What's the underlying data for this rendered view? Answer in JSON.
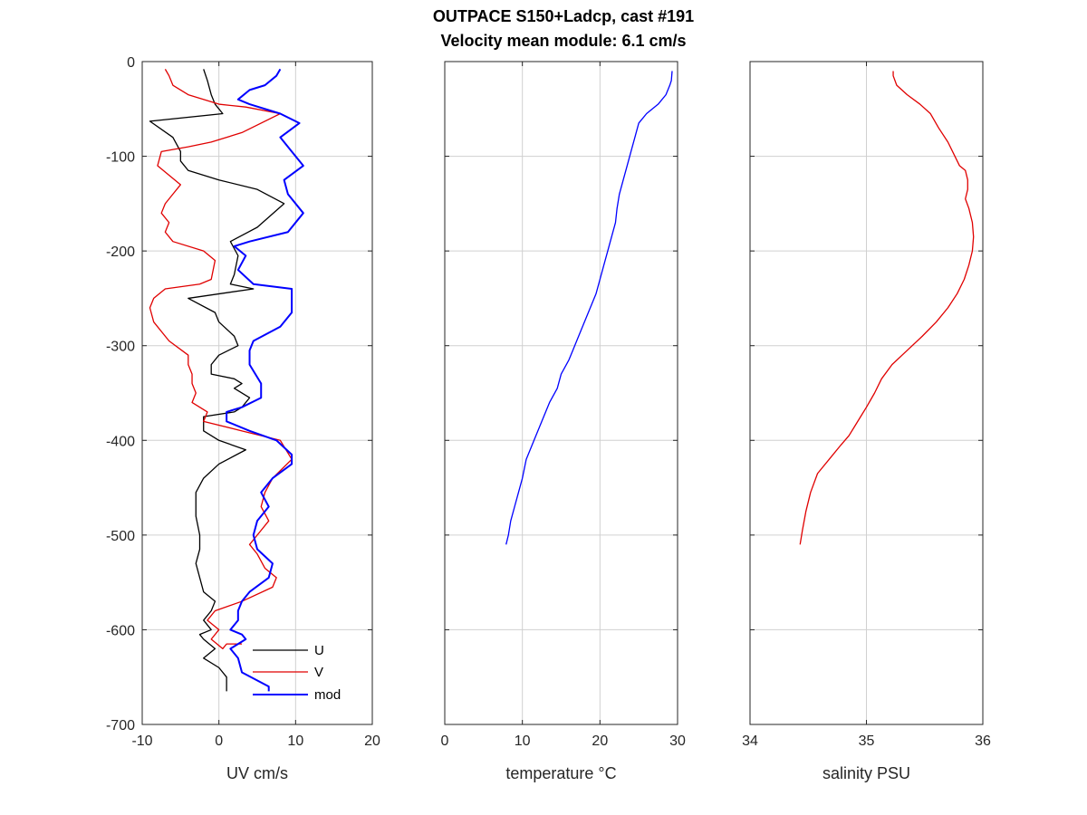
{
  "figure": {
    "title_line1": "OUTPACE S150+Ladcp, cast #191",
    "title_line2": "Velocity mean module:  6.1 cm/s",
    "colors": {
      "U": "#000000",
      "V": "#e00000",
      "mod": "#0000ff",
      "temperature": "#0000ff",
      "salinity": "#e00000",
      "grid": "#d0d0d0",
      "axes": "#262626"
    }
  },
  "chart_data": [
    {
      "type": "line",
      "id": "uv",
      "xlabel": "UV cm/s",
      "ylabel": "",
      "xlim": [
        -10,
        20
      ],
      "ylim": [
        -700,
        0
      ],
      "xticks": [
        "-10",
        "0",
        "10",
        "20"
      ],
      "yticks": [
        "0",
        "-100",
        "-200",
        "-300",
        "-400",
        "-500",
        "-600",
        "-700"
      ],
      "xticks_values": [
        -10,
        0,
        10,
        20
      ],
      "yticks_values": [
        0,
        -100,
        -200,
        -300,
        -400,
        -500,
        -600,
        -700
      ],
      "grid": true,
      "legend": {
        "placement": "bottom-right",
        "entries": [
          "U",
          "V",
          "mod"
        ]
      },
      "series": [
        {
          "name": "U",
          "x": [
            -2,
            -1.5,
            -1,
            -0.5,
            0.5,
            -9,
            -6,
            -5,
            -5,
            -4,
            0,
            5,
            8.5,
            5,
            1.5,
            2.5,
            2,
            1.5,
            4.5,
            -4,
            -0.5,
            0,
            2,
            2.5,
            0,
            -1,
            -1,
            2,
            3,
            2,
            4,
            3,
            2,
            -2,
            -2,
            0,
            3.5,
            0,
            -2,
            -3,
            -3,
            -3,
            -2.5,
            -2.5,
            -3,
            -2.5,
            -2,
            -0.5,
            -1,
            -2,
            -1,
            -2.5,
            -2,
            -0.5,
            -2,
            0,
            1,
            1
          ],
          "y": [
            -8,
            -20,
            -35,
            -45,
            -55,
            -63,
            -80,
            -95,
            -105,
            -115,
            -125,
            -135,
            -150,
            -175,
            -190,
            -205,
            -225,
            -235,
            -240,
            -250,
            -265,
            -275,
            -290,
            -300,
            -310,
            -320,
            -330,
            -335,
            -340,
            -345,
            -355,
            -365,
            -370,
            -375,
            -390,
            -400,
            -410,
            -425,
            -440,
            -455,
            -470,
            -480,
            -500,
            -515,
            -530,
            -545,
            -560,
            -570,
            -580,
            -590,
            -600,
            -605,
            -610,
            -620,
            -630,
            -640,
            -650,
            -665
          ]
        },
        {
          "name": "V",
          "x": [
            -7,
            -6.5,
            -6,
            -4,
            0,
            3.5,
            8,
            3,
            -1,
            -4,
            -7.5,
            -8,
            -6.5,
            -5,
            -6,
            -7,
            -7.5,
            -6.5,
            -7,
            -6,
            -2,
            -0.5,
            -1,
            -2.5,
            -7,
            -8.5,
            -9,
            -8.5,
            -6.5,
            -4,
            -4,
            -3.5,
            -3.5,
            -3,
            -3.5,
            -1.5,
            -2,
            3,
            8,
            9.5,
            7,
            6,
            5.5,
            6.5,
            5,
            4,
            5,
            6,
            7.5,
            7,
            3,
            -0.5,
            -1.5,
            0,
            -1,
            0.5,
            1,
            3
          ],
          "y": [
            -8,
            -15,
            -25,
            -35,
            -45,
            -48,
            -55,
            -75,
            -85,
            -90,
            -95,
            -110,
            -120,
            -130,
            -140,
            -150,
            -160,
            -170,
            -180,
            -190,
            -200,
            -210,
            -230,
            -235,
            -240,
            -250,
            -260,
            -275,
            -295,
            -310,
            -320,
            -330,
            -340,
            -350,
            -360,
            -370,
            -380,
            -390,
            -400,
            -420,
            -440,
            -455,
            -470,
            -485,
            -500,
            -510,
            -520,
            -535,
            -545,
            -555,
            -570,
            -580,
            -590,
            -600,
            -610,
            -620,
            -615,
            -615
          ]
        },
        {
          "name": "mod",
          "x": [
            8,
            7.5,
            6,
            4,
            2.5,
            4,
            8,
            10.5,
            8,
            9.5,
            11,
            8.5,
            9,
            11,
            9,
            4,
            2,
            3.5,
            2.5,
            4.5,
            9.5,
            9.5,
            8,
            4.5,
            4,
            4,
            5.5,
            5.5,
            3,
            1,
            1,
            4,
            7.5,
            9.5,
            9.5,
            7,
            5.5,
            6.5,
            5,
            4.5,
            5,
            7,
            6.5,
            4,
            3,
            2.5,
            2.5,
            1.5,
            3,
            3.5,
            2.5,
            1.5,
            2.5,
            3,
            6.5,
            6.5
          ],
          "y": [
            -8,
            -15,
            -25,
            -30,
            -40,
            -45,
            -55,
            -65,
            -80,
            -95,
            -110,
            -125,
            -140,
            -160,
            -180,
            -190,
            -195,
            -205,
            -220,
            -235,
            -240,
            -265,
            -280,
            -295,
            -305,
            -320,
            -340,
            -355,
            -365,
            -370,
            -380,
            -390,
            -400,
            -415,
            -425,
            -440,
            -455,
            -470,
            -485,
            -500,
            -515,
            -530,
            -545,
            -560,
            -570,
            -580,
            -590,
            -600,
            -605,
            -610,
            -615,
            -620,
            -630,
            -645,
            -660,
            -665
          ]
        }
      ]
    },
    {
      "type": "line",
      "id": "temperature",
      "xlabel": "temperature °C",
      "ylabel": "",
      "xlim": [
        0,
        30
      ],
      "ylim": [
        -700,
        0
      ],
      "xticks": [
        "0",
        "10",
        "20",
        "30"
      ],
      "xticks_values": [
        0,
        10,
        20,
        30
      ],
      "yticks_values": [
        0,
        -100,
        -200,
        -300,
        -400,
        -500,
        -600,
        -700
      ],
      "grid": true,
      "series": [
        {
          "name": "",
          "x": [
            29.3,
            29.2,
            29.0,
            28.5,
            27.5,
            26.0,
            25.0,
            24.5,
            24.0,
            23.5,
            23.0,
            22.5,
            22.2,
            22.0,
            21.5,
            21.0,
            20.5,
            20.0,
            19.5,
            18.5,
            17.5,
            16.5,
            16.0,
            15.0,
            14.5,
            13.5,
            12.5,
            11.5,
            10.5,
            10.0,
            9.5,
            9.0,
            8.5,
            8.2,
            7.9
          ],
          "y": [
            -10,
            -20,
            -25,
            -35,
            -45,
            -55,
            -65,
            -80,
            -95,
            -110,
            -125,
            -140,
            -155,
            -170,
            -185,
            -200,
            -215,
            -230,
            -245,
            -265,
            -285,
            -305,
            -315,
            -330,
            -345,
            -360,
            -380,
            -400,
            -420,
            -440,
            -455,
            -470,
            -485,
            -500,
            -510
          ]
        }
      ]
    },
    {
      "type": "line",
      "id": "salinity",
      "xlabel": "salinity PSU",
      "ylabel": "",
      "xlim": [
        34,
        36
      ],
      "ylim": [
        -700,
        0
      ],
      "xticks": [
        "34",
        "35",
        "36"
      ],
      "xticks_values": [
        34,
        35,
        36
      ],
      "yticks_values": [
        0,
        -100,
        -200,
        -300,
        -400,
        -500,
        -600,
        -700
      ],
      "grid": true,
      "series": [
        {
          "name": "",
          "x": [
            35.23,
            35.23,
            35.26,
            35.35,
            35.46,
            35.55,
            35.62,
            35.7,
            35.76,
            35.8,
            35.85,
            35.87,
            35.87,
            35.85,
            35.88,
            35.91,
            35.92,
            35.91,
            35.88,
            35.84,
            35.78,
            35.7,
            35.6,
            35.48,
            35.35,
            35.22,
            35.13,
            35.07,
            35.0,
            34.95,
            34.9,
            34.85,
            34.78,
            34.68,
            34.58,
            34.52,
            34.48,
            34.45,
            34.43
          ],
          "y": [
            -10,
            -15,
            -25,
            -35,
            -45,
            -55,
            -70,
            -85,
            -100,
            -110,
            -115,
            -125,
            -135,
            -145,
            -155,
            -170,
            -185,
            -200,
            -215,
            -230,
            -245,
            -260,
            -275,
            -290,
            -305,
            -320,
            -335,
            -350,
            -365,
            -375,
            -385,
            -395,
            -405,
            -420,
            -435,
            -455,
            -475,
            -495,
            -510
          ]
        }
      ]
    }
  ]
}
